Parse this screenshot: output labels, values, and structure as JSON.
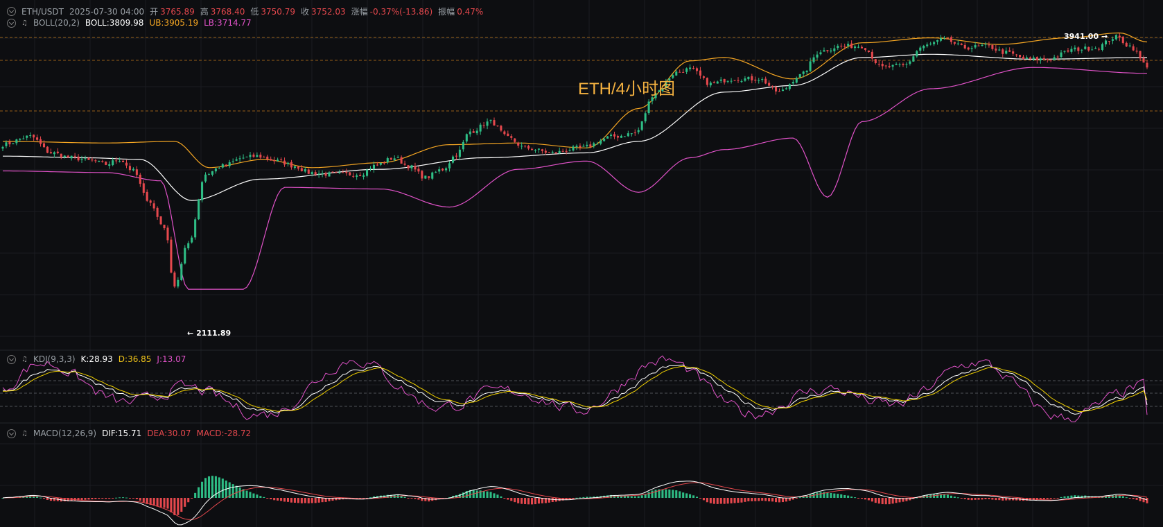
{
  "header": {
    "symbol": "ETH/USDT",
    "datetime": "2025-07-30 04:00",
    "open_label": "开",
    "open": "3765.89",
    "high_label": "高",
    "high": "3768.40",
    "low_label": "低",
    "low": "3750.79",
    "close_label": "收",
    "close": "3752.03",
    "change_label": "涨幅",
    "change": "-0.37%(-13.86)",
    "amp_label": "振幅",
    "amp": "0.47%"
  },
  "boll": {
    "name": "BOLL(20,2)",
    "boll": "BOLL:3809.98",
    "ub": "UB:3905.19",
    "lb": "LB:3714.77"
  },
  "kdj": {
    "name": "KDJ(9,3,3)",
    "k": "K:28.93",
    "d": "D:36.85",
    "j": "J:13.07"
  },
  "macd": {
    "name": "MACD(12,26,9)",
    "dif": "DIF:15.71",
    "dea": "DEA:30.07",
    "macd": "MACD:-28.72"
  },
  "overlay_title": "ETH/4小时图",
  "max_label": "3941.00",
  "min_label": "2111.89",
  "colors": {
    "up": "#2ebd85",
    "down": "#e5484d",
    "mid": "#ffffff",
    "ub": "#f5a623",
    "lb": "#e052c8",
    "bg": "#0d0e11",
    "k": "#ffffff",
    "d": "#f0d000",
    "j": "#e052c8",
    "dif": "#ffffff",
    "dea": "#e5484d"
  },
  "chart_data": {
    "type": "candlestick",
    "title": "ETH/4小时图",
    "ylim": [
      2050,
      4000
    ],
    "price_anchors": [
      [
        0,
        3280
      ],
      [
        8,
        3330
      ],
      [
        14,
        3230
      ],
      [
        20,
        3200
      ],
      [
        26,
        3180
      ],
      [
        30,
        3160
      ],
      [
        34,
        3190
      ],
      [
        38,
        3120
      ],
      [
        42,
        2950
      ],
      [
        47,
        2780
      ],
      [
        50,
        2420
      ],
      [
        54,
        2680
      ],
      [
        59,
        3100
      ],
      [
        64,
        3150
      ],
      [
        70,
        3200
      ],
      [
        74,
        3210
      ],
      [
        80,
        3180
      ],
      [
        85,
        3150
      ],
      [
        89,
        3110
      ],
      [
        95,
        3100
      ],
      [
        104,
        3100
      ],
      [
        108,
        3150
      ],
      [
        114,
        3200
      ],
      [
        118,
        3150
      ],
      [
        123,
        3080
      ],
      [
        128,
        3130
      ],
      [
        132,
        3220
      ],
      [
        136,
        3360
      ],
      [
        142,
        3420
      ],
      [
        147,
        3320
      ],
      [
        152,
        3260
      ],
      [
        160,
        3230
      ],
      [
        168,
        3260
      ],
      [
        178,
        3330
      ],
      [
        184,
        3350
      ],
      [
        190,
        3600
      ],
      [
        196,
        3720
      ],
      [
        200,
        3740
      ],
      [
        206,
        3650
      ],
      [
        212,
        3680
      ],
      [
        220,
        3680
      ],
      [
        226,
        3600
      ],
      [
        232,
        3700
      ],
      [
        238,
        3850
      ],
      [
        244,
        3880
      ],
      [
        250,
        3880
      ],
      [
        256,
        3750
      ],
      [
        262,
        3760
      ],
      [
        268,
        3880
      ],
      [
        274,
        3920
      ],
      [
        280,
        3870
      ],
      [
        286,
        3880
      ],
      [
        292,
        3840
      ],
      [
        298,
        3800
      ],
      [
        304,
        3800
      ],
      [
        312,
        3860
      ],
      [
        318,
        3870
      ],
      [
        324,
        3935
      ],
      [
        328,
        3880
      ],
      [
        333,
        3760
      ]
    ],
    "boll_mid_anchors": [
      [
        0,
        3210
      ],
      [
        25,
        3200
      ],
      [
        40,
        3190
      ],
      [
        55,
        2940
      ],
      [
        75,
        3070
      ],
      [
        110,
        3130
      ],
      [
        140,
        3200
      ],
      [
        170,
        3230
      ],
      [
        185,
        3300
      ],
      [
        210,
        3600
      ],
      [
        230,
        3640
      ],
      [
        250,
        3810
      ],
      [
        270,
        3830
      ],
      [
        300,
        3800
      ],
      [
        333,
        3810
      ]
    ],
    "boll_ub_anchors": [
      [
        0,
        3300
      ],
      [
        30,
        3290
      ],
      [
        50,
        3300
      ],
      [
        60,
        3140
      ],
      [
        76,
        3190
      ],
      [
        90,
        3140
      ],
      [
        110,
        3170
      ],
      [
        130,
        3280
      ],
      [
        150,
        3290
      ],
      [
        170,
        3260
      ],
      [
        185,
        3500
      ],
      [
        200,
        3790
      ],
      [
        210,
        3810
      ],
      [
        230,
        3680
      ],
      [
        250,
        3900
      ],
      [
        270,
        3930
      ],
      [
        290,
        3890
      ],
      [
        310,
        3930
      ],
      [
        325,
        3960
      ],
      [
        333,
        3905
      ]
    ],
    "boll_lb_anchors": [
      [
        0,
        3120
      ],
      [
        30,
        3110
      ],
      [
        46,
        3060
      ],
      [
        54,
        2400
      ],
      [
        70,
        2400
      ],
      [
        82,
        3020
      ],
      [
        110,
        3010
      ],
      [
        130,
        2900
      ],
      [
        150,
        3130
      ],
      [
        170,
        3180
      ],
      [
        185,
        2990
      ],
      [
        200,
        3200
      ],
      [
        210,
        3250
      ],
      [
        230,
        3320
      ],
      [
        240,
        2960
      ],
      [
        250,
        3420
      ],
      [
        270,
        3620
      ],
      [
        300,
        3750
      ],
      [
        333,
        3714
      ]
    ],
    "kdj": {
      "k_last": 28.93,
      "d_last": 36.85,
      "j_last": 13.07
    },
    "macd": {
      "dif_last": 15.71,
      "dea_last": 30.07,
      "macd_last": -28.72
    },
    "max_price": 3941.0,
    "min_price": 2111.89,
    "candles": 334
  }
}
